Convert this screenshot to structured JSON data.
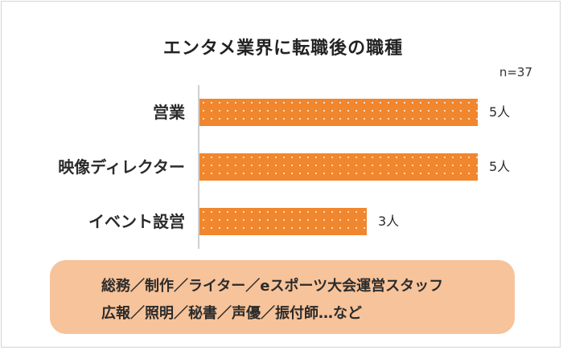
{
  "chart_data": {
    "type": "bar",
    "orientation": "horizontal",
    "title": "エンタメ業界に転職後の職種",
    "note": "n=37",
    "categories": [
      "営業",
      "映像ディレクター",
      "イベント設営"
    ],
    "values": [
      5,
      5,
      3
    ],
    "value_labels": [
      "5人",
      "5人",
      "3人"
    ],
    "xlim": [
      0,
      5
    ],
    "bar_color": "#f0862d",
    "grid": false
  },
  "others_box": {
    "line1": "総務／制作／ライター／eスポーツ大会運営スタッフ",
    "line2": "広報／照明／秘書／声優／振付師…など",
    "color": "#f7c39a"
  }
}
